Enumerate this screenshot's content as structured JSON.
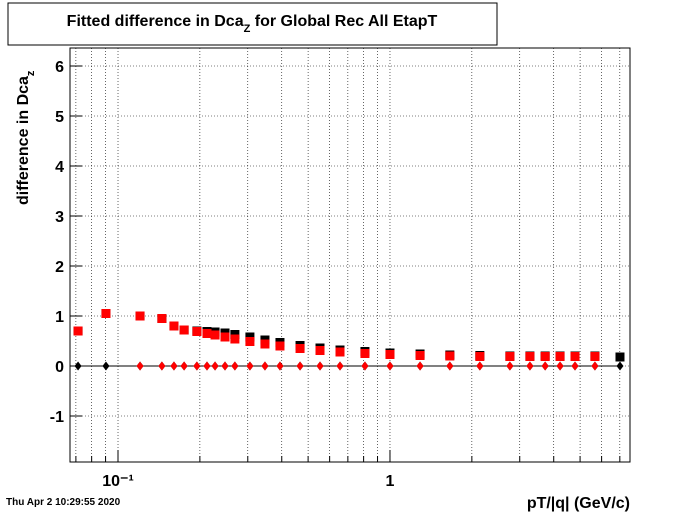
{
  "chart_data": {
    "type": "scatter",
    "title": [
      "Fitted difference in Dca",
      "Z",
      " for Global Rec All EtapT"
    ],
    "y_label": [
      "difference in Dca",
      "z"
    ],
    "x_label": "pT/|q| (GeV/c)",
    "timestamp": "Thu Apr  2 10:29:55 2020",
    "log_x": true,
    "grid": true,
    "xlim": [
      0.0666,
      7.63
    ],
    "ylim": [
      -1.92,
      6.36
    ],
    "xticks": [
      {
        "value": 0.1,
        "label": "10⁻¹"
      },
      1
    ],
    "xminorticks": [
      0.07,
      0.08,
      0.09,
      0.2,
      0.3,
      0.4,
      0.5,
      0.6,
      0.7,
      0.8,
      0.9,
      2,
      3,
      4,
      5,
      6,
      7
    ],
    "yticks": [
      -1,
      0,
      1,
      2,
      3,
      4,
      5,
      6
    ],
    "x": [
      0.0713,
      0.0903,
      0.1205,
      0.145,
      0.1606,
      0.175,
      0.195,
      0.2124,
      0.2274,
      0.2474,
      0.269,
      0.3055,
      0.347,
      0.394,
      0.467,
      0.553,
      0.655,
      0.809,
      1.0,
      1.29,
      1.66,
      2.14,
      2.76,
      3.27,
      3.72,
      4.22,
      4.79,
      5.67,
      7.01
    ],
    "series": [
      {
        "marker": "square",
        "color": "#000000",
        "values": [
          0.7,
          1.05,
          1.0,
          0.95,
          0.8,
          0.72,
          0.7,
          0.69,
          0.68,
          0.66,
          0.63,
          0.58,
          0.52,
          0.47,
          0.41,
          0.36,
          0.32,
          0.29,
          0.26,
          0.24,
          0.22,
          0.21,
          0.2,
          0.2,
          0.2,
          0.2,
          0.2,
          0.2,
          0.18
        ]
      },
      {
        "marker": "square",
        "color": "#ff0000",
        "values": [
          0.7,
          1.05,
          1.0,
          0.95,
          0.8,
          0.72,
          0.69,
          0.65,
          0.62,
          0.58,
          0.54,
          0.49,
          0.44,
          0.4,
          0.35,
          0.31,
          0.28,
          0.25,
          0.23,
          0.21,
          0.2,
          0.19,
          0.19,
          0.19,
          0.19,
          0.19,
          0.19,
          0.19,
          null
        ]
      },
      {
        "marker": "diamond",
        "color": "#000000",
        "line": true,
        "values": [
          0,
          0,
          0,
          0,
          0,
          0,
          0,
          0,
          0,
          0,
          0,
          0,
          0,
          0,
          0,
          0,
          0,
          0,
          0,
          0,
          0,
          0,
          0,
          0,
          0,
          0,
          0,
          0,
          0
        ]
      },
      {
        "marker": "diamond",
        "color": "#ff0000",
        "values": [
          null,
          null,
          0,
          0,
          0,
          0,
          0,
          0,
          0,
          0,
          0,
          0,
          0,
          0,
          0,
          0,
          0,
          0,
          0,
          0,
          0,
          0,
          0,
          0,
          0,
          0,
          0,
          0,
          null
        ]
      }
    ]
  }
}
